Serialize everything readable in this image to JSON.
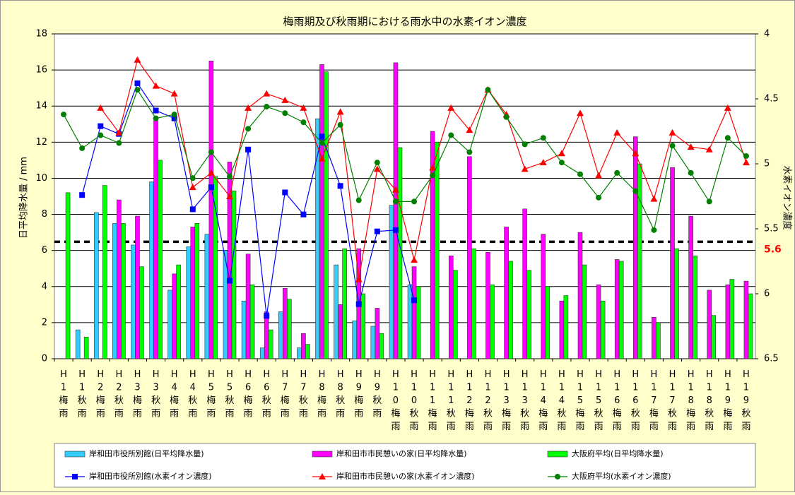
{
  "chart_data": {
    "type": "bar_line",
    "title": "梅雨期及び秋雨期における雨水中の水素イオン濃度",
    "y_label": "日平均降水量 / mm",
    "y2_label": "水素イオン濃度",
    "categories": [
      "H1梅雨",
      "H1秋雨",
      "H2梅雨",
      "H2秋雨",
      "H3梅雨",
      "H3秋雨",
      "H4梅雨",
      "H4秋雨",
      "H5梅雨",
      "H5秋雨",
      "H6梅雨",
      "H6秋雨",
      "H7梅雨",
      "H7秋雨",
      "H8梅雨",
      "H8秋雨",
      "H9梅雨",
      "H9秋雨",
      "H10梅雨",
      "H10秋雨",
      "H11梅雨",
      "H11秋雨",
      "H12梅雨",
      "H12秋雨",
      "H13梅雨",
      "H13秋雨",
      "H14梅雨",
      "H14秋雨",
      "H15梅雨",
      "H15秋雨",
      "H16梅雨",
      "H16秋雨",
      "H17梅雨",
      "H17秋雨",
      "H18梅雨",
      "H18秋雨",
      "H19梅雨",
      "H19秋雨"
    ],
    "ylim": [
      0,
      18
    ],
    "yticks": [
      0,
      2,
      4,
      6,
      8,
      10,
      12,
      14,
      16,
      18
    ],
    "y2lim": [
      6.5,
      4
    ],
    "y2ticks": [
      4,
      4.5,
      5,
      5.5,
      6,
      6.5
    ],
    "reference_line": 5.6,
    "reference_color": "#ff0000",
    "grid": true,
    "series": [
      {
        "name": "岸和田市役所別館(日平均降水量)",
        "type": "bar",
        "color": "#33ccff",
        "values": [
          null,
          1.6,
          8.1,
          7.5,
          6.3,
          9.8,
          3.8,
          6.2,
          6.9,
          6.0,
          3.2,
          0.6,
          2.6,
          0.6,
          13.3,
          5.2,
          2.1,
          1.8,
          8.5,
          4.1,
          null,
          null,
          null,
          null,
          null,
          null,
          null,
          null,
          null,
          null,
          null,
          null,
          null,
          null,
          null,
          null,
          null,
          null
        ]
      },
      {
        "name": "岸和田市市民憩いの家(日平均降水量)",
        "type": "bar",
        "color": "#ff00ff",
        "values": [
          null,
          null,
          null,
          8.8,
          7.9,
          13.2,
          4.7,
          7.3,
          16.5,
          10.9,
          5.8,
          2.6,
          3.9,
          1.4,
          16.3,
          3.0,
          6.1,
          2.8,
          16.4,
          5.1,
          12.6,
          5.7,
          11.2,
          5.9,
          7.3,
          8.3,
          6.9,
          3.2,
          7.0,
          4.1,
          5.5,
          12.3,
          2.3,
          10.6,
          7.9,
          3.8,
          4.1,
          4.3
        ]
      },
      {
        "name": "大阪府平均(日平均降水量)",
        "type": "bar",
        "color": "#00ff00",
        "values": [
          9.2,
          1.2,
          9.6,
          7.5,
          5.1,
          11.0,
          5.2,
          7.5,
          10.1,
          9.3,
          4.1,
          1.6,
          3.3,
          0.8,
          15.9,
          6.1,
          3.6,
          1.4,
          11.7,
          4.0,
          12.0,
          4.9,
          6.1,
          4.1,
          5.4,
          4.9,
          4.0,
          3.5,
          5.2,
          3.2,
          5.4,
          10.8,
          2.0,
          6.1,
          5.7,
          2.4,
          4.4,
          3.6
        ]
      },
      {
        "name": "岸和田市役所別館(水素イオン濃度)",
        "type": "line",
        "axis": "y2",
        "color": "#0000ff",
        "marker": "square",
        "values": [
          null,
          5.24,
          4.71,
          4.77,
          4.38,
          4.59,
          4.65,
          5.35,
          5.18,
          5.9,
          4.89,
          6.17,
          5.22,
          5.39,
          4.79,
          5.17,
          6.08,
          5.52,
          5.51,
          6.05,
          null,
          null,
          null,
          null,
          null,
          null,
          null,
          null,
          null,
          null,
          null,
          null,
          null,
          null,
          null,
          null,
          null,
          null
        ]
      },
      {
        "name": "岸和田市市民憩いの家(水素イオン濃度)",
        "type": "line",
        "axis": "y2",
        "color": "#ff0000",
        "marker": "triangle",
        "values": [
          null,
          null,
          4.57,
          4.76,
          4.2,
          4.4,
          4.46,
          5.18,
          5.07,
          5.25,
          4.57,
          4.46,
          4.51,
          4.57,
          4.96,
          4.6,
          5.89,
          5.04,
          5.2,
          5.74,
          5.03,
          4.57,
          4.74,
          4.43,
          4.62,
          5.04,
          4.99,
          4.92,
          4.61,
          5.09,
          4.76,
          4.92,
          5.27,
          4.76,
          4.87,
          4.89,
          4.57,
          4.99
        ]
      },
      {
        "name": "大阪府平均(水素イオン濃度)",
        "type": "line",
        "axis": "y2",
        "color": "#008000",
        "marker": "circle",
        "values": [
          4.62,
          4.88,
          4.78,
          4.84,
          4.43,
          4.65,
          4.62,
          5.11,
          4.91,
          5.1,
          4.73,
          4.56,
          4.61,
          4.68,
          4.84,
          4.7,
          5.28,
          4.99,
          5.29,
          5.29,
          5.09,
          4.78,
          4.91,
          4.43,
          4.64,
          4.85,
          4.8,
          4.99,
          5.08,
          5.26,
          5.07,
          5.21,
          5.51,
          4.86,
          5.07,
          5.29,
          4.8,
          4.94
        ]
      }
    ]
  }
}
